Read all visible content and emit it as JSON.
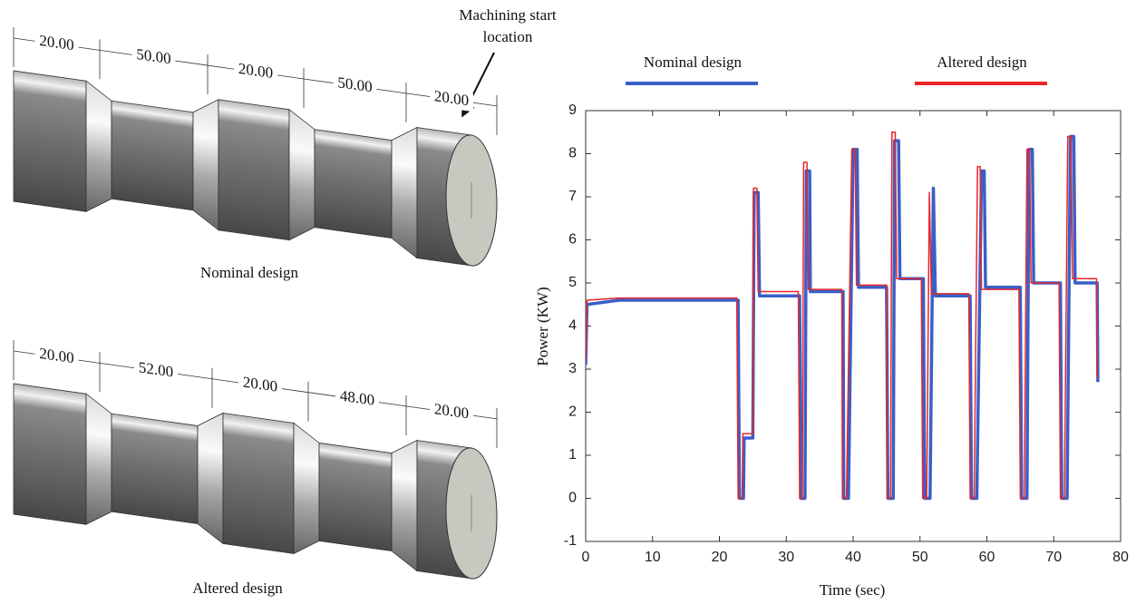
{
  "annotation_lines": [
    "Machining start",
    "location"
  ],
  "parts": [
    {
      "caption": "Nominal design",
      "dimensions": [
        "20.00",
        "50.00",
        "20.00",
        "50.00",
        "20.00"
      ]
    },
    {
      "caption": "Altered design",
      "dimensions": [
        "20.00",
        "52.00",
        "20.00",
        "48.00",
        "20.00"
      ]
    }
  ],
  "chart_data": {
    "type": "line",
    "xlabel": "Time (sec)",
    "ylabel": "Power (KW)",
    "xlim": [
      0,
      80
    ],
    "xticks": [
      0,
      10,
      20,
      30,
      40,
      50,
      60,
      70,
      80
    ],
    "ylim": [
      -1,
      9
    ],
    "yticks": [
      -1,
      0,
      1,
      2,
      3,
      4,
      5,
      6,
      7,
      8,
      9
    ],
    "legend": "top",
    "series": [
      {
        "name": "Nominal design",
        "color": "#3a5fc8",
        "x": [
          0,
          0.2,
          5,
          10,
          15,
          20,
          22.8,
          23,
          23.6,
          23.7,
          25,
          25.2,
          25.8,
          26,
          32,
          32.2,
          32.8,
          33,
          33.5,
          33.6,
          38.5,
          38.6,
          39.3,
          40,
          40.6,
          40.8,
          45,
          45.2,
          46,
          46.2,
          46.8,
          47,
          50.5,
          50.7,
          51.5,
          52,
          52.3,
          57.5,
          57.7,
          58.5,
          59.2,
          59.6,
          59.8,
          65,
          65.2,
          66,
          66.3,
          66.8,
          67,
          71,
          71.2,
          72,
          72.5,
          73,
          73.2,
          76.5,
          76.6
        ],
        "values": [
          3.1,
          4.5,
          4.6,
          4.6,
          4.6,
          4.6,
          4.6,
          0,
          0,
          1.4,
          1.4,
          7.1,
          7.1,
          4.7,
          4.7,
          0,
          0,
          7.6,
          7.6,
          4.8,
          4.8,
          0,
          0,
          8.1,
          8.1,
          4.9,
          4.9,
          0,
          0,
          8.3,
          8.3,
          5.1,
          5.1,
          0,
          0,
          7.2,
          4.7,
          4.7,
          0,
          0,
          7.6,
          7.6,
          4.9,
          4.9,
          0,
          0,
          8.1,
          8.1,
          5.0,
          5.0,
          0,
          0,
          8.4,
          8.4,
          5.0,
          5.0,
          2.7
        ]
      },
      {
        "name": "Altered design",
        "color": "#e8262a",
        "x": [
          0,
          0.2,
          5,
          10,
          15,
          20,
          22.6,
          22.8,
          23.4,
          23.5,
          25,
          25.1,
          25.6,
          25.8,
          31.8,
          32,
          32.4,
          32.6,
          33.1,
          33.3,
          38.3,
          38.4,
          39,
          39.8,
          40.3,
          40.5,
          45,
          45.1,
          45.6,
          45.8,
          46.3,
          46.5,
          50.2,
          50.4,
          51,
          51.4,
          51.7,
          57.3,
          57.5,
          58.1,
          58.6,
          59,
          59.2,
          64.8,
          65,
          65.6,
          66,
          66.4,
          66.6,
          70.8,
          71,
          71.6,
          72.1,
          72.6,
          72.8,
          76.4,
          76.5
        ],
        "values": [
          3.2,
          4.6,
          4.65,
          4.65,
          4.65,
          4.65,
          4.65,
          0,
          0,
          1.5,
          1.5,
          7.2,
          7.2,
          4.8,
          4.8,
          0,
          0,
          7.8,
          7.8,
          4.85,
          4.85,
          0,
          0,
          8.1,
          8.1,
          4.95,
          4.95,
          0,
          0,
          8.5,
          8.5,
          5.1,
          5.1,
          0,
          0,
          7.1,
          4.75,
          4.75,
          0,
          0,
          7.7,
          7.7,
          4.85,
          4.85,
          0,
          0,
          8.1,
          8.1,
          5.0,
          5.0,
          0,
          0,
          8.4,
          8.4,
          5.1,
          5.1,
          2.8
        ]
      }
    ]
  }
}
